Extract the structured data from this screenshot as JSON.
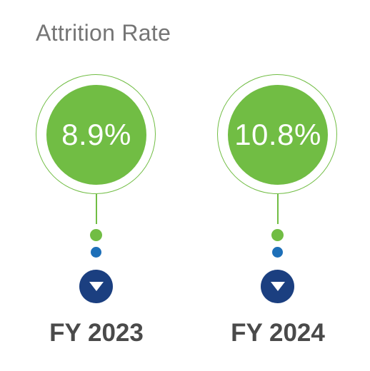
{
  "title": "Attrition Rate",
  "colors": {
    "green": "#71bd44",
    "blue_dot": "#1d6fb8",
    "navy": "#1b3f80",
    "title_gray": "#757575",
    "year_gray": "#4a4a4a"
  },
  "stats": [
    {
      "value": "8.9%",
      "year": "FY 2023",
      "icon": "down-triangle-icon"
    },
    {
      "value": "10.8%",
      "year": "FY 2024",
      "icon": "down-triangle-icon"
    }
  ]
}
